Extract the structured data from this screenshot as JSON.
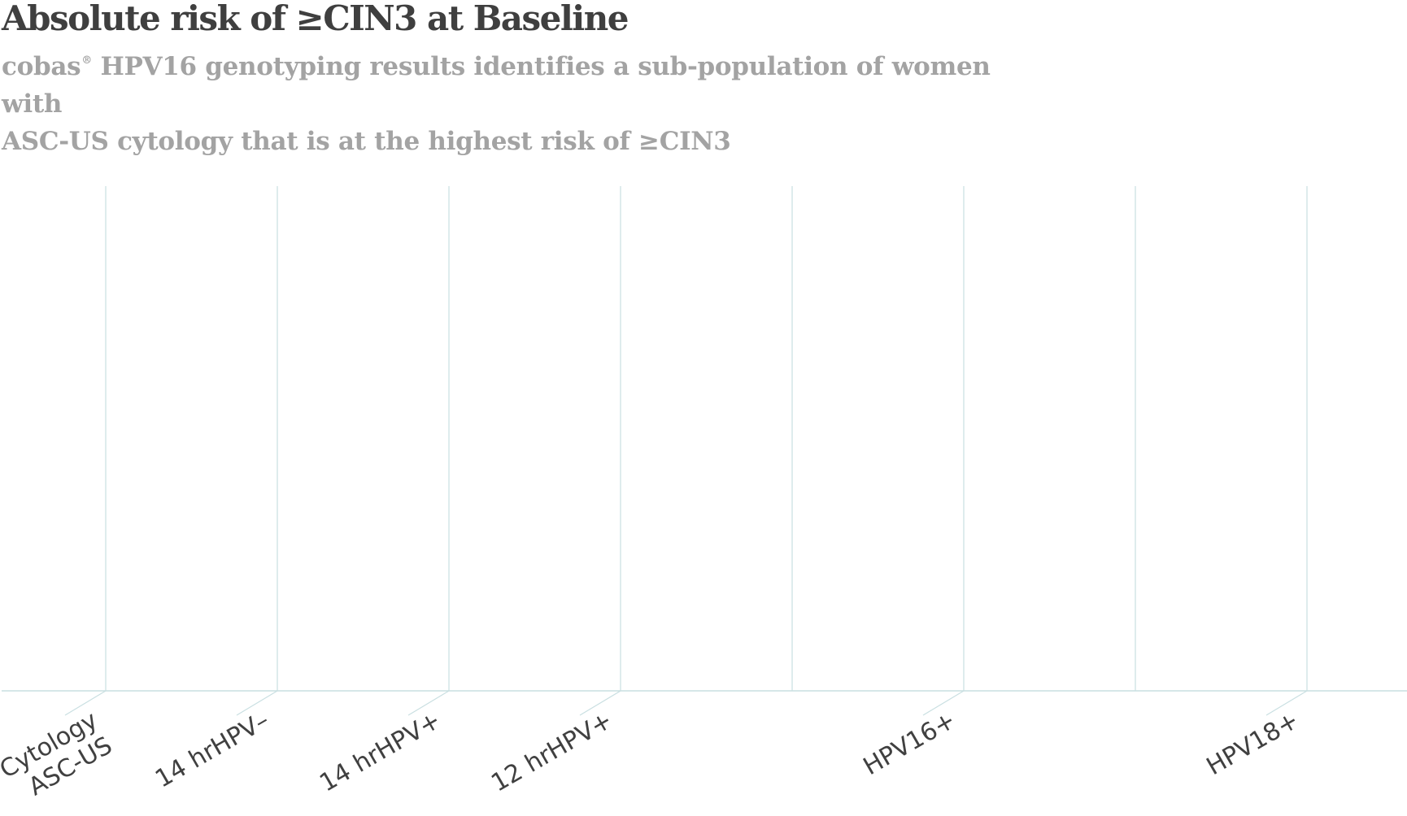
{
  "header": {
    "title": "Absolute risk of ≥CIN3 at Baseline",
    "subtitle_brand": "cobas",
    "subtitle_mark": "®",
    "subtitle_line1_rest": " HPV16 genotyping results identifies a sub-population of women with",
    "subtitle_line2": "ASC-US cytology that is at the highest risk of ≥CIN3"
  },
  "colors": {
    "title": "#3f3f3f",
    "subtitle": "#a3a3a3",
    "grid": "#c9dfe1",
    "axis": "#c9dfe1",
    "tick_label": "#404040"
  },
  "chart_data": {
    "type": "bar",
    "title": "Absolute risk of ≥CIN3 at Baseline",
    "categories": [
      [
        "Cytology",
        "ASC-US"
      ],
      [
        "14 hrHPV–"
      ],
      [
        "14 hrHPV+"
      ],
      [
        "12 hrHPV+"
      ],
      [],
      [
        "HPV16+"
      ],
      [],
      [
        "HPV18+"
      ]
    ],
    "values": [
      0,
      0,
      0,
      0,
      null,
      0,
      null,
      0
    ],
    "grid": true,
    "xlabel": "",
    "ylabel": "",
    "legend": "none"
  }
}
